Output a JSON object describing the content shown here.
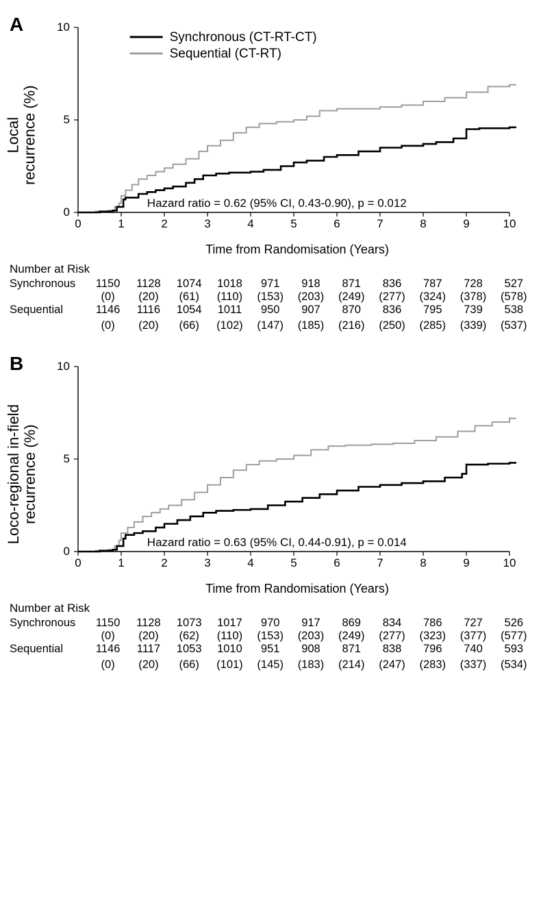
{
  "global": {
    "legend": {
      "series1": "Synchronous (CT-RT-CT)",
      "series2": "Sequential (CT-RT)"
    },
    "xlabel": "Time from Randomisation (Years)",
    "risk_title": "Number at Risk",
    "colors": {
      "synchronous": "#000000",
      "sequential": "#9E9E9E",
      "axis": "#000000",
      "bg": "#ffffff"
    },
    "axis": {
      "xlim": [
        0,
        10
      ],
      "xticks": [
        0,
        1,
        2,
        3,
        4,
        5,
        6,
        7,
        8,
        9,
        10
      ],
      "ylim": [
        0,
        10
      ],
      "yticks": [
        0,
        5,
        10
      ],
      "tick_fontsize": 17,
      "label_fontsize": 18,
      "ylabel_fontsize": 22,
      "line_width_black": 2.6,
      "line_width_gray": 2.0
    }
  },
  "panelA": {
    "letter": "A",
    "ylabel": "Local\nrecurrence (%)",
    "hr_text": "Hazard ratio = 0.62 (95% CI, 0.43-0.90), p = 0.012",
    "synchronous_curve": [
      [
        0,
        0
      ],
      [
        0.5,
        0.05
      ],
      [
        0.8,
        0.1
      ],
      [
        0.9,
        0.3
      ],
      [
        1.0,
        0.3
      ],
      [
        1.05,
        0.7
      ],
      [
        1.1,
        0.8
      ],
      [
        1.3,
        0.8
      ],
      [
        1.4,
        1.0
      ],
      [
        1.6,
        1.1
      ],
      [
        1.8,
        1.2
      ],
      [
        2.0,
        1.3
      ],
      [
        2.2,
        1.4
      ],
      [
        2.5,
        1.6
      ],
      [
        2.7,
        1.8
      ],
      [
        2.9,
        2.0
      ],
      [
        3.2,
        2.1
      ],
      [
        3.5,
        2.15
      ],
      [
        4.0,
        2.2
      ],
      [
        4.3,
        2.3
      ],
      [
        4.7,
        2.5
      ],
      [
        5.0,
        2.7
      ],
      [
        5.3,
        2.8
      ],
      [
        5.7,
        3.0
      ],
      [
        6.0,
        3.1
      ],
      [
        6.5,
        3.3
      ],
      [
        7.0,
        3.5
      ],
      [
        7.5,
        3.6
      ],
      [
        8.0,
        3.7
      ],
      [
        8.3,
        3.8
      ],
      [
        8.7,
        4.0
      ],
      [
        9.0,
        4.5
      ],
      [
        9.3,
        4.55
      ],
      [
        10.0,
        4.6
      ],
      [
        10.2,
        4.6
      ]
    ],
    "sequential_curve": [
      [
        0,
        0
      ],
      [
        0.4,
        0.05
      ],
      [
        0.7,
        0.1
      ],
      [
        0.85,
        0.3
      ],
      [
        0.95,
        0.5
      ],
      [
        1.0,
        0.9
      ],
      [
        1.1,
        1.2
      ],
      [
        1.25,
        1.5
      ],
      [
        1.4,
        1.8
      ],
      [
        1.6,
        2.0
      ],
      [
        1.8,
        2.2
      ],
      [
        2.0,
        2.4
      ],
      [
        2.2,
        2.6
      ],
      [
        2.5,
        2.9
      ],
      [
        2.8,
        3.3
      ],
      [
        3.0,
        3.6
      ],
      [
        3.3,
        3.9
      ],
      [
        3.6,
        4.3
      ],
      [
        3.9,
        4.6
      ],
      [
        4.2,
        4.8
      ],
      [
        4.6,
        4.9
      ],
      [
        5.0,
        5.0
      ],
      [
        5.3,
        5.2
      ],
      [
        5.6,
        5.5
      ],
      [
        6.0,
        5.6
      ],
      [
        6.5,
        5.6
      ],
      [
        7.0,
        5.7
      ],
      [
        7.5,
        5.8
      ],
      [
        8.0,
        6.0
      ],
      [
        8.5,
        6.2
      ],
      [
        9.0,
        6.5
      ],
      [
        9.5,
        6.8
      ],
      [
        10.0,
        6.9
      ],
      [
        10.2,
        6.9
      ]
    ],
    "risk": {
      "synchronous": [
        "1150",
        "1128",
        "1074",
        "1018",
        "971",
        "918",
        "871",
        "836",
        "787",
        "728",
        "527"
      ],
      "synchronous2": [
        "(0)",
        "(20)",
        "(61)",
        "(110)",
        "(153)",
        "(203)",
        "(249)",
        "(277)",
        "(324)",
        "(378)",
        "(578)"
      ],
      "sequential": [
        "1146",
        "1116",
        "1054",
        "1011",
        "950",
        "907",
        "870",
        "836",
        "795",
        "739",
        "538"
      ],
      "sequential2": [
        "(0)",
        "(20)",
        "(66)",
        "(102)",
        "(147)",
        "(185)",
        "(216)",
        "(250)",
        "(285)",
        "(339)",
        "(537)"
      ]
    }
  },
  "panelB": {
    "letter": "B",
    "ylabel": "Loco-regional in-field\nrecurrence (%)",
    "hr_text": "Hazard ratio = 0.63 (95% CI, 0.44-0.91), p = 0.014",
    "synchronous_curve": [
      [
        0,
        0
      ],
      [
        0.5,
        0.05
      ],
      [
        0.8,
        0.1
      ],
      [
        0.9,
        0.3
      ],
      [
        1.0,
        0.3
      ],
      [
        1.05,
        0.7
      ],
      [
        1.1,
        0.9
      ],
      [
        1.3,
        1.0
      ],
      [
        1.5,
        1.1
      ],
      [
        1.8,
        1.3
      ],
      [
        2.0,
        1.5
      ],
      [
        2.3,
        1.7
      ],
      [
        2.6,
        1.9
      ],
      [
        2.9,
        2.1
      ],
      [
        3.2,
        2.2
      ],
      [
        3.6,
        2.25
      ],
      [
        4.0,
        2.3
      ],
      [
        4.4,
        2.5
      ],
      [
        4.8,
        2.7
      ],
      [
        5.2,
        2.9
      ],
      [
        5.6,
        3.1
      ],
      [
        6.0,
        3.3
      ],
      [
        6.5,
        3.5
      ],
      [
        7.0,
        3.6
      ],
      [
        7.5,
        3.7
      ],
      [
        8.0,
        3.8
      ],
      [
        8.5,
        4.0
      ],
      [
        8.9,
        4.2
      ],
      [
        9.0,
        4.7
      ],
      [
        9.5,
        4.75
      ],
      [
        10.0,
        4.8
      ],
      [
        10.2,
        4.8
      ]
    ],
    "sequential_curve": [
      [
        0,
        0
      ],
      [
        0.4,
        0.05
      ],
      [
        0.7,
        0.1
      ],
      [
        0.85,
        0.3
      ],
      [
        0.95,
        0.6
      ],
      [
        1.0,
        1.0
      ],
      [
        1.15,
        1.3
      ],
      [
        1.3,
        1.6
      ],
      [
        1.5,
        1.9
      ],
      [
        1.7,
        2.1
      ],
      [
        1.9,
        2.3
      ],
      [
        2.1,
        2.5
      ],
      [
        2.4,
        2.8
      ],
      [
        2.7,
        3.2
      ],
      [
        3.0,
        3.6
      ],
      [
        3.3,
        4.0
      ],
      [
        3.6,
        4.4
      ],
      [
        3.9,
        4.7
      ],
      [
        4.2,
        4.9
      ],
      [
        4.6,
        5.0
      ],
      [
        5.0,
        5.2
      ],
      [
        5.4,
        5.5
      ],
      [
        5.8,
        5.7
      ],
      [
        6.2,
        5.75
      ],
      [
        6.8,
        5.8
      ],
      [
        7.3,
        5.85
      ],
      [
        7.8,
        6.0
      ],
      [
        8.3,
        6.2
      ],
      [
        8.8,
        6.5
      ],
      [
        9.2,
        6.8
      ],
      [
        9.6,
        7.0
      ],
      [
        10.0,
        7.2
      ],
      [
        10.2,
        7.2
      ]
    ],
    "risk": {
      "synchronous": [
        "1150",
        "1128",
        "1073",
        "1017",
        "970",
        "917",
        "869",
        "834",
        "786",
        "727",
        "526"
      ],
      "synchronous2": [
        "(0)",
        "(20)",
        "(62)",
        "(110)",
        "(153)",
        "(203)",
        "(249)",
        "(277)",
        "(323)",
        "(377)",
        "(577)"
      ],
      "sequential": [
        "1146",
        "1117",
        "1053",
        "1010",
        "951",
        "908",
        "871",
        "838",
        "796",
        "740",
        "593"
      ],
      "sequential2": [
        "(0)",
        "(20)",
        "(66)",
        "(101)",
        "(145)",
        "(183)",
        "(214)",
        "(247)",
        "(283)",
        "(337)",
        "(534)"
      ]
    }
  }
}
